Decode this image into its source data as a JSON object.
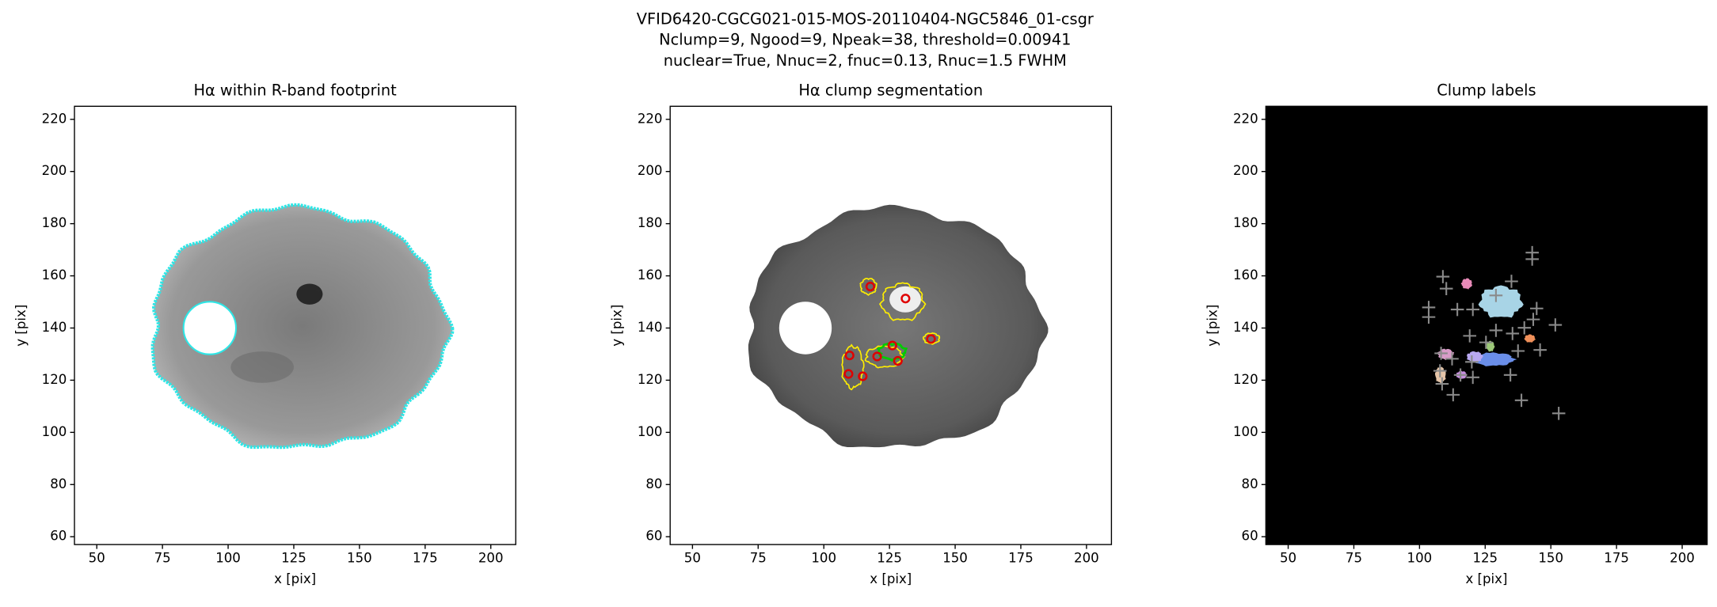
{
  "suptitle": [
    "VFID6420-CGCG021-015-MOS-20110404-NGC5846_01-csgr",
    "Nclump=9, Ngood=9, Npeak=38, threshold=0.00941",
    "nuclear=True, Nnuc=2, fnuc=0.13, Rnuc=1.5 FWHM"
  ],
  "chart_data": [
    {
      "type": "image",
      "title": "Hα within R-band footprint",
      "xlabel": "x [pix]",
      "ylabel": "y [pix]",
      "xlim": [
        41.5,
        209.5
      ],
      "ylim": [
        57,
        225
      ],
      "xticks": [
        50,
        75,
        100,
        125,
        150,
        175,
        200
      ],
      "yticks": [
        60,
        80,
        100,
        120,
        140,
        160,
        180,
        200,
        220
      ]
    },
    {
      "type": "image",
      "title": "Hα clump segmentation",
      "xlabel": "x [pix]",
      "ylabel": "y [pix]",
      "xlim": [
        41.5,
        209.5
      ],
      "ylim": [
        57,
        225
      ],
      "xticks": [
        50,
        75,
        100,
        125,
        150,
        175,
        200
      ],
      "yticks": [
        60,
        80,
        100,
        120,
        140,
        160,
        180,
        200,
        220
      ],
      "points": {
        "color": "#e00000",
        "x": [
          117.7,
          131.1,
          140.8,
          109.8,
          120.3,
          126.1,
          128.2,
          109.4,
          114.8
        ],
        "y": [
          155.9,
          151.3,
          135.8,
          129.5,
          129.1,
          133.3,
          127.4,
          122.4,
          121.5
        ]
      }
    },
    {
      "type": "image",
      "title": "Clump labels",
      "xlabel": "x [pix]",
      "ylabel": "y [pix]",
      "xlim": [
        41.5,
        209.5
      ],
      "ylim": [
        57,
        225
      ],
      "xticks": [
        50,
        75,
        100,
        125,
        150,
        175,
        200
      ],
      "yticks": [
        60,
        80,
        100,
        120,
        140,
        160,
        180,
        200,
        220
      ],
      "points": {
        "color": "#8a8a8a",
        "x": [
          108.9,
          142.9,
          142.9,
          129.1,
          135,
          110.2,
          114.4,
          103.5,
          103.5,
          120.3,
          144.6,
          143.3,
          151.7,
          139.9,
          119.1,
          129.1,
          135.4,
          125.3,
          145.9,
          137.5,
          108.2,
          112.4,
          119.9,
          120.3,
          134.6,
          107.8,
          108.6,
          112.8,
          138.8,
          153,
          115.6
        ],
        "y": [
          159.7,
          168.9,
          166.4,
          152.5,
          157.9,
          155.1,
          147.1,
          147.9,
          144.2,
          147.1,
          147.5,
          143.3,
          141.2,
          140.1,
          137,
          139.1,
          137.9,
          134.5,
          131.6,
          131.2,
          130.3,
          128.2,
          127,
          121.1,
          122,
          123.6,
          118.6,
          114.4,
          112.3,
          107.3,
          122
        ]
      }
    }
  ]
}
